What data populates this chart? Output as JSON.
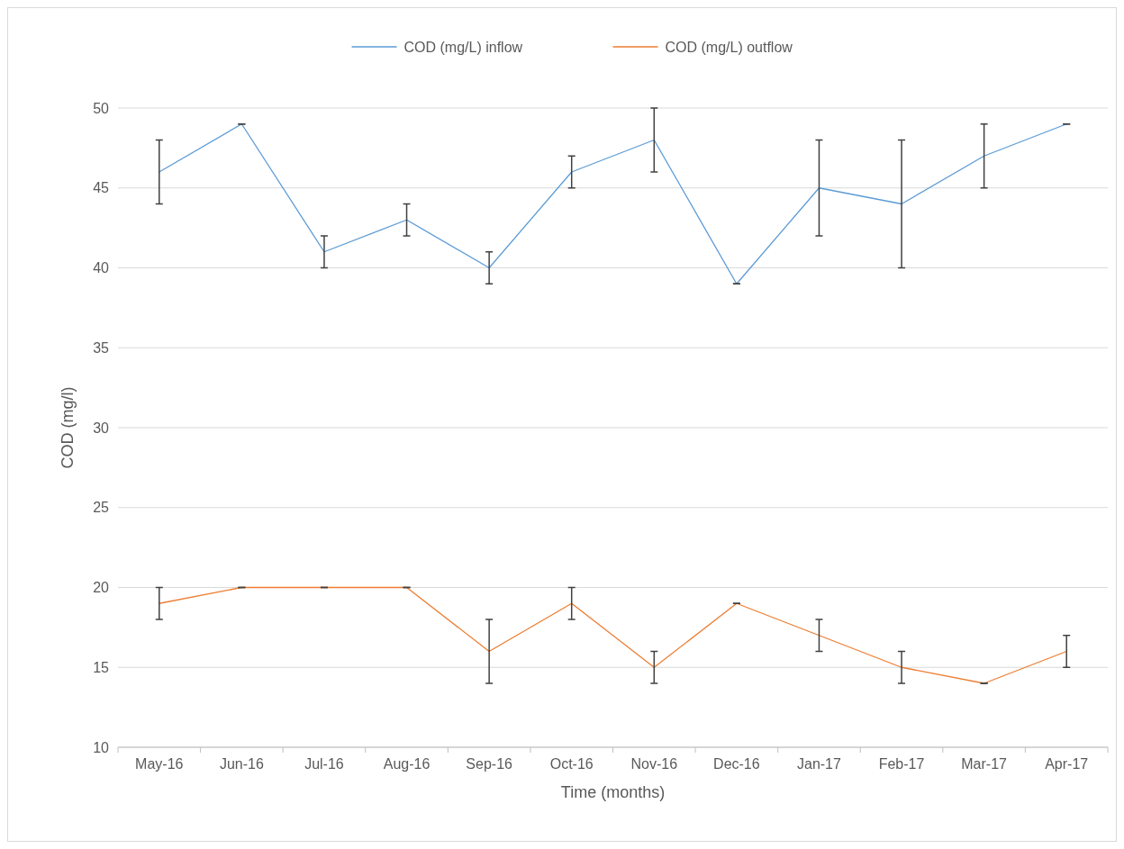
{
  "chart_data": {
    "type": "line",
    "xlabel": "Time (months)",
    "ylabel": "COD (mg/l)",
    "categories": [
      "May-16",
      "Jun-16",
      "Jul-16",
      "Aug-16",
      "Sep-16",
      "Oct-16",
      "Nov-16",
      "Dec-16",
      "Jan-17",
      "Feb-17",
      "Mar-17",
      "Apr-17"
    ],
    "series": [
      {
        "name": "COD (mg/L) inflow",
        "color": "#5b9bd5",
        "values": [
          46,
          49,
          41,
          43,
          40,
          46,
          48,
          39,
          45,
          44,
          47,
          49
        ],
        "errors": [
          2,
          0,
          1,
          1,
          1,
          1,
          2,
          0,
          3,
          4,
          2,
          0
        ]
      },
      {
        "name": "COD (mg/L) outflow",
        "color": "#ed7d31",
        "values": [
          19,
          20,
          20,
          20,
          16,
          19,
          15,
          19,
          17,
          15,
          14,
          16
        ],
        "errors": [
          1,
          0,
          0,
          0,
          2,
          1,
          1,
          0,
          1,
          1,
          0,
          1
        ]
      }
    ],
    "ylim": [
      10,
      50
    ],
    "yticks": [
      10,
      15,
      20,
      25,
      30,
      35,
      40,
      45,
      50
    ],
    "grid": "y",
    "legend": "top",
    "marker": "none",
    "line_style": "solid"
  }
}
